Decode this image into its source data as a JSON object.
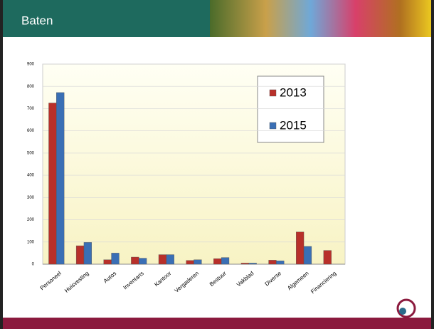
{
  "header": {
    "title": "Baten"
  },
  "chart_data": {
    "type": "bar",
    "categories": [
      "Personeel",
      "Huisvesting",
      "Autos",
      "Inventaris",
      "Kantoor",
      "Vergaderen",
      "Bestuur",
      "Vakblad",
      "Diverse",
      "Algemeen",
      "Financiering"
    ],
    "series": [
      {
        "name": "2013",
        "color": "#b8302a",
        "values": [
          725,
          83,
          20,
          32,
          43,
          17,
          25,
          5,
          18,
          145,
          62
        ]
      },
      {
        "name": "2015",
        "color": "#3a6fb5",
        "values": [
          772,
          98,
          50,
          27,
          43,
          20,
          30,
          5,
          15,
          80,
          null
        ]
      }
    ],
    "ylim": [
      0,
      900
    ],
    "yticks": [
      0,
      100,
      200,
      300,
      400,
      500,
      600,
      700,
      800,
      900
    ],
    "grid": true,
    "legend": "upper right"
  }
}
